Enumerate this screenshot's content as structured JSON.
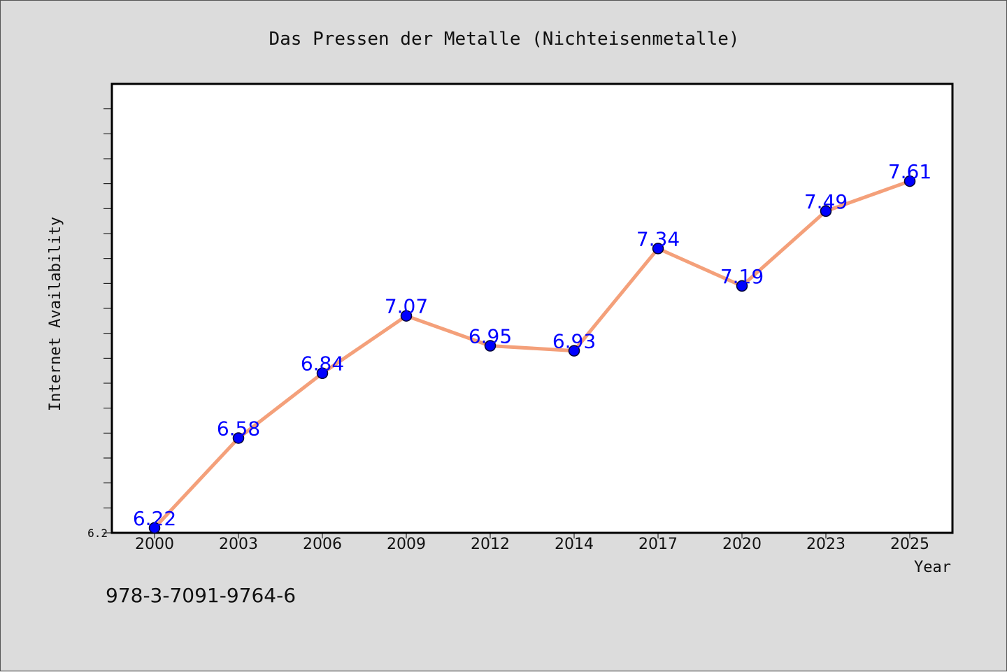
{
  "chart_data": {
    "type": "line",
    "title": "Das Pressen der Metalle (Nichteisenmetalle)",
    "xlabel": "Year",
    "ylabel": "Internet Availability",
    "categories": [
      "2000",
      "2003",
      "2006",
      "2009",
      "2012",
      "2014",
      "2017",
      "2020",
      "2023",
      "2025"
    ],
    "series": [
      {
        "values": [
          6.22,
          6.58,
          6.84,
          7.07,
          6.95,
          6.93,
          7.34,
          7.19,
          7.49,
          7.61
        ]
      }
    ],
    "ylim": [
      6.2,
      8.0
    ],
    "y_tick_labels": [
      "6.2"
    ],
    "grid": false,
    "data_labels": true,
    "colors": {
      "line": "#f4a07a",
      "marker": "#0000ff",
      "label": "#0000ff"
    }
  },
  "footer": {
    "isbn": "978-3-7091-9764-6"
  }
}
